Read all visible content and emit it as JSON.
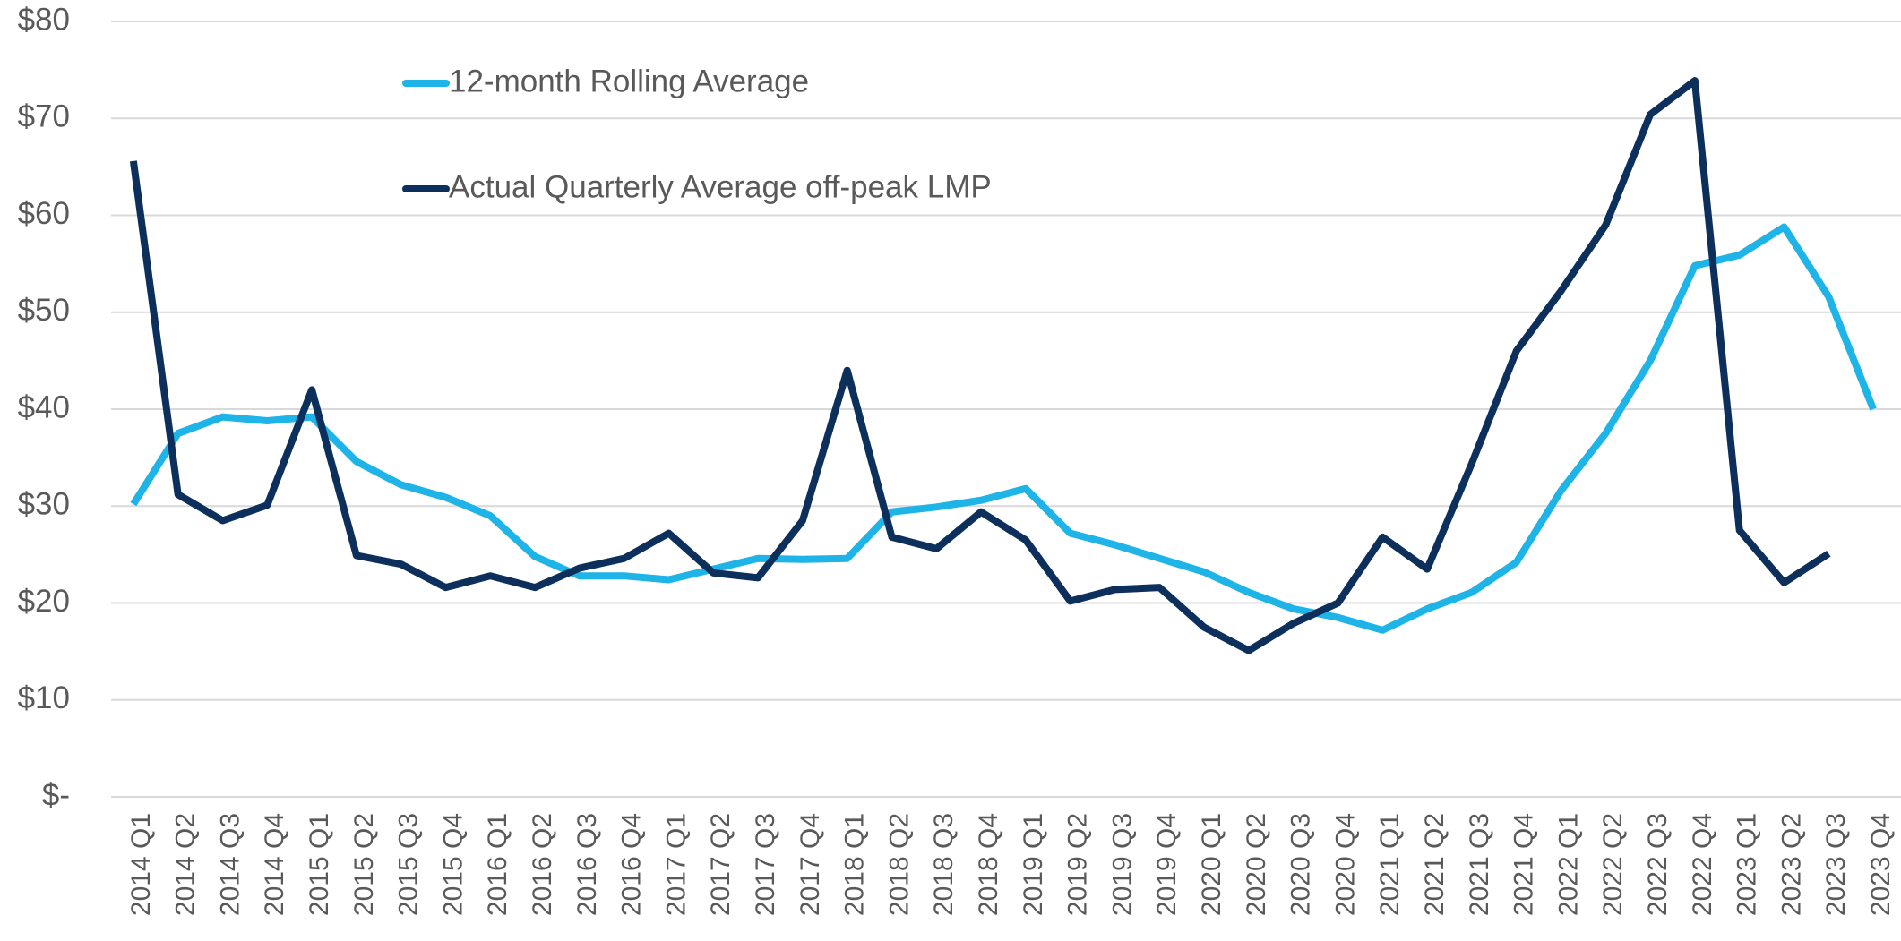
{
  "chart_data": {
    "type": "line",
    "categories": [
      "2014 Q1",
      "2014 Q2",
      "2014 Q3",
      "2014 Q4",
      "2015 Q1",
      "2015 Q2",
      "2015 Q3",
      "2015 Q4",
      "2016 Q1",
      "2016 Q2",
      "2016 Q3",
      "2016 Q4",
      "2017 Q1",
      "2017 Q2",
      "2017 Q3",
      "2017 Q4",
      "2018 Q1",
      "2018 Q2",
      "2018 Q3",
      "2018 Q4",
      "2019 Q1",
      "2019 Q2",
      "2019 Q3",
      "2019 Q4",
      "2020 Q1",
      "2020 Q2",
      "2020 Q3",
      "2020 Q4",
      "2021 Q1",
      "2021 Q2",
      "2021 Q3",
      "2021 Q4",
      "2022 Q1",
      "2022 Q2",
      "2022 Q3",
      "2022 Q4",
      "2023 Q1",
      "2023 Q2",
      "2023 Q3",
      "2023 Q4"
    ],
    "series": [
      {
        "name": "12-month Rolling Average",
        "color": "#1eb4e8",
        "values": [
          30.2,
          37.5,
          39.2,
          38.8,
          39.2,
          34.6,
          32.2,
          30.9,
          29.0,
          24.8,
          22.8,
          22.8,
          22.4,
          23.5,
          24.6,
          24.5,
          24.6,
          29.4,
          29.9,
          30.6,
          31.8,
          27.2,
          26.0,
          24.6,
          23.2,
          21.1,
          19.4,
          18.5,
          17.2,
          19.4,
          21.1,
          24.2,
          31.6,
          37.5,
          45.0,
          54.8,
          55.9,
          58.8,
          51.6,
          40.0
        ]
      },
      {
        "name": "Actual Quarterly Average off-peak LMP",
        "color": "#0d2f5c",
        "values": [
          65.6,
          31.2,
          28.5,
          30.1,
          42.0,
          24.9,
          24.0,
          21.6,
          22.8,
          21.6,
          23.6,
          24.6,
          27.2,
          23.1,
          22.6,
          28.5,
          44.0,
          26.8,
          25.6,
          29.4,
          26.5,
          20.2,
          21.4,
          21.6,
          17.5,
          15.1,
          17.9,
          20.0,
          26.8,
          23.5,
          34.4,
          46.0,
          52.2,
          59.0,
          70.4,
          73.9,
          27.5,
          22.1,
          25.1,
          null
        ]
      }
    ],
    "ylim": [
      0,
      80
    ],
    "yticks": [
      {
        "value": 0,
        "label": "$-"
      },
      {
        "value": 10,
        "label": "$10"
      },
      {
        "value": 20,
        "label": "$20"
      },
      {
        "value": 30,
        "label": "$30"
      },
      {
        "value": 40,
        "label": "$40"
      },
      {
        "value": 50,
        "label": "$50"
      },
      {
        "value": 60,
        "label": "$60"
      },
      {
        "value": 70,
        "label": "$70"
      },
      {
        "value": 80,
        "label": "$80"
      }
    ],
    "grid": true,
    "legend": "upper left"
  }
}
